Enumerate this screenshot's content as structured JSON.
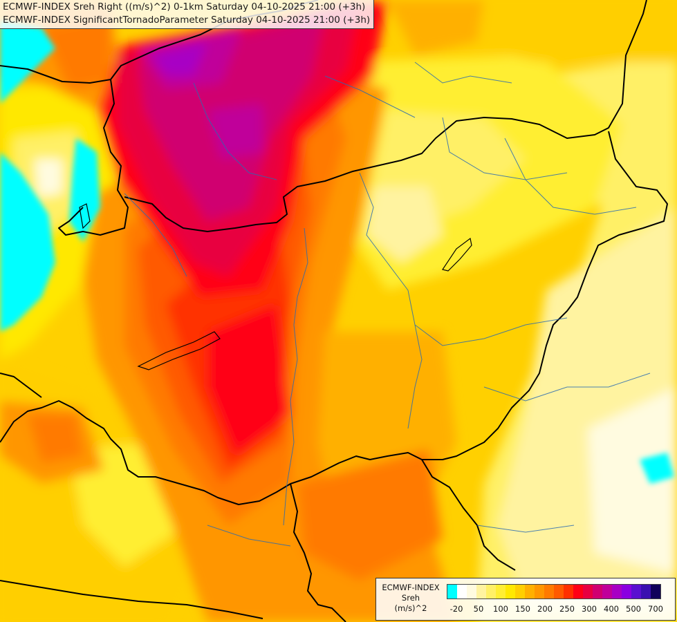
{
  "titles": [
    "ECMWF-INDEX Sreh Right ((m/s)^2) 0-1km Saturday 04-10-2025 21:00 (+3h)",
    "ECMWF-INDEX SignificantTornadoParameter Saturday 04-10-2025 21:00 (+3h)"
  ],
  "legend": {
    "line1": "ECMWF-INDEX",
    "line2": "Sreh",
    "line3": "(m/s)^2",
    "colors": [
      "#00ffff",
      "#ffffff",
      "#fffbe0",
      "#fff3a0",
      "#fff066",
      "#ffee33",
      "#ffe800",
      "#ffcf00",
      "#ffb000",
      "#ff9600",
      "#ff7a00",
      "#ff5a00",
      "#ff3000",
      "#ff0015",
      "#e80040",
      "#d00070",
      "#c0009a",
      "#a800c4",
      "#8a00e0",
      "#5a10d0",
      "#3a10b0",
      "#10005a"
    ],
    "ticks": [
      "-20",
      "50",
      "100",
      "150",
      "200",
      "250",
      "300",
      "400",
      "500",
      "700"
    ]
  }
}
